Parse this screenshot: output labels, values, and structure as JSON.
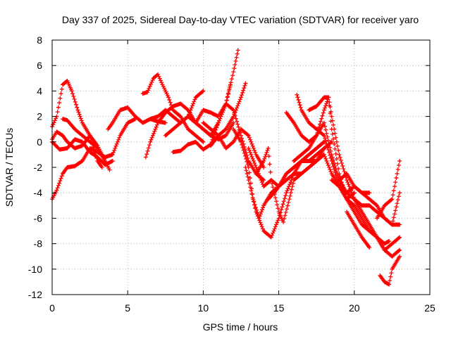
{
  "chart_data": {
    "type": "scatter",
    "title": "Day 337 of 2025, Sidereal Day-to-day VTEC variation (SDTVAR) for receiver yaro",
    "xlabel": "GPS time / hours",
    "ylabel": "SDTVAR / TECUs",
    "xlim": [
      0,
      25
    ],
    "ylim": [
      -12,
      8
    ],
    "x_ticks": [
      0,
      5,
      10,
      15,
      20,
      25
    ],
    "y_ticks": [
      -12,
      -10,
      -8,
      -6,
      -4,
      -2,
      0,
      2,
      4,
      6,
      8
    ],
    "grid": true,
    "marker": "+",
    "color": "#ff0000",
    "series": [
      {
        "x": [
          0.0,
          0.5,
          1.0,
          1.5,
          2.0,
          2.5,
          3.0,
          3.5,
          4.0
        ],
        "y": [
          0.0,
          -0.6,
          -0.5,
          0.2,
          0.0,
          -0.8,
          -1.2,
          -1.8,
          -1.5
        ]
      },
      {
        "x": [
          0.0,
          0.3,
          0.7,
          1.0,
          1.3,
          1.7,
          2.0,
          2.5,
          3.0,
          3.3
        ],
        "y": [
          1.2,
          2.0,
          4.5,
          4.8,
          4.0,
          2.5,
          1.5,
          0.5,
          -0.3,
          -1.0
        ]
      },
      {
        "x": [
          0.0,
          0.3,
          0.7,
          1.0,
          1.5,
          2.0,
          2.5,
          3.0,
          3.5,
          4.0,
          4.5,
          5.0,
          5.5
        ],
        "y": [
          -4.5,
          -3.8,
          -2.5,
          -2.0,
          -1.9,
          -1.5,
          -0.5,
          -0.8,
          -1.2,
          -1.0,
          0.5,
          1.5,
          1.8
        ]
      },
      {
        "x": [
          0.0,
          0.3,
          0.7,
          1.0,
          1.5,
          2.0,
          2.5,
          3.0,
          3.3
        ],
        "y": [
          0.2,
          0.8,
          0.5,
          0.0,
          -0.5,
          -0.3,
          0.5,
          -1.5,
          -2.0
        ]
      },
      {
        "x": [
          0.7,
          1.0,
          1.5,
          2.0,
          2.5,
          3.0,
          3.5,
          3.8
        ],
        "y": [
          1.8,
          1.7,
          1.0,
          0.5,
          0.0,
          -0.5,
          -1.5,
          -2.2
        ]
      },
      {
        "x": [
          3.7,
          4.0,
          4.5,
          5.0,
          5.5,
          6.0,
          6.5,
          7.0,
          7.5
        ],
        "y": [
          1.0,
          1.5,
          2.5,
          2.7,
          2.0,
          1.5,
          1.8,
          1.6,
          1.5
        ]
      },
      {
        "x": [
          6.0,
          6.3,
          6.7,
          7.0,
          7.3,
          7.7,
          8.0,
          8.5,
          9.0,
          9.5,
          10.0
        ],
        "y": [
          3.8,
          3.9,
          5.0,
          5.3,
          4.5,
          3.5,
          2.5,
          2.0,
          1.0,
          0.5,
          0.0
        ]
      },
      {
        "x": [
          6.2,
          6.5,
          7.0,
          7.5,
          8.0,
          8.5,
          9.0,
          9.5,
          10.0,
          10.5,
          11.0,
          11.5,
          12.0
        ],
        "y": [
          -1.2,
          0.0,
          1.5,
          2.3,
          2.8,
          3.0,
          2.5,
          1.5,
          1.0,
          0.5,
          0.2,
          0.5,
          1.5
        ]
      },
      {
        "x": [
          6.5,
          7.0,
          7.5,
          8.0,
          8.5,
          9.0,
          9.5,
          10.0
        ],
        "y": [
          1.8,
          2.0,
          2.5,
          2.0,
          1.5,
          2.0,
          3.5,
          4.0
        ]
      },
      {
        "x": [
          7.5,
          8.0,
          8.5,
          9.0,
          9.5,
          10.0,
          10.5,
          11.0,
          11.5,
          12.0,
          12.3
        ],
        "y": [
          0.5,
          1.0,
          1.5,
          2.0,
          1.5,
          1.0,
          0.5,
          1.5,
          3.0,
          5.5,
          7.2
        ]
      },
      {
        "x": [
          8.0,
          8.5,
          9.0,
          9.5,
          10.0,
          10.5,
          11.0,
          11.5,
          11.8
        ],
        "y": [
          -0.8,
          -0.7,
          -0.2,
          0.0,
          -0.6,
          -0.2,
          1.5,
          3.0,
          4.5
        ]
      },
      {
        "x": [
          9.0,
          9.5,
          10.0,
          10.5,
          11.0,
          11.5,
          12.0,
          12.5,
          13.0,
          13.5,
          14.0
        ],
        "y": [
          2.0,
          1.5,
          2.5,
          2.3,
          2.0,
          3.0,
          2.5,
          0.5,
          -1.5,
          -2.5,
          -3.0
        ]
      },
      {
        "x": [
          10.0,
          10.5,
          11.0,
          11.5,
          12.0,
          12.5,
          13.0,
          13.5,
          14.0
        ],
        "y": [
          1.5,
          1.0,
          0.5,
          -0.5,
          0.0,
          1.0,
          0.5,
          -1.0,
          -2.0
        ]
      },
      {
        "x": [
          10.5,
          11.0,
          11.5,
          12.0,
          12.5,
          12.8
        ],
        "y": [
          -0.3,
          0.5,
          1.0,
          2.0,
          3.5,
          4.6
        ]
      },
      {
        "x": [
          12.0,
          12.5,
          13.0,
          13.3,
          13.7,
          14.0,
          14.5,
          15.0,
          15.5,
          16.0,
          16.5,
          17.0,
          17.5
        ],
        "y": [
          1.0,
          0.0,
          -2.0,
          -4.5,
          -6.0,
          -5.0,
          -4.0,
          -3.5,
          -3.0,
          -2.5,
          -2.5,
          -2.0,
          -1.5
        ]
      },
      {
        "x": [
          12.8,
          13.0,
          13.5,
          14.0,
          14.5,
          15.0,
          15.5,
          16.0,
          16.5,
          17.0,
          17.5,
          18.0
        ],
        "y": [
          -2.0,
          -3.0,
          -5.5,
          -7.0,
          -7.5,
          -6.0,
          -4.0,
          -2.5,
          -1.5,
          -1.0,
          -0.5,
          0.0
        ]
      },
      {
        "x": [
          13.0,
          13.5,
          14.0,
          14.5,
          15.0,
          15.3,
          15.7,
          16.0,
          16.5,
          17.0,
          17.5,
          18.0
        ],
        "y": [
          -0.5,
          -2.0,
          -3.5,
          -3.0,
          -5.5,
          -6.3,
          -4.5,
          -3.0,
          -2.5,
          -2.0,
          -1.5,
          -0.5
        ]
      },
      {
        "x": [
          13.5,
          14.0,
          14.3,
          14.5,
          15.0,
          15.5,
          16.0,
          16.5,
          17.0,
          17.5,
          18.0
        ],
        "y": [
          -2.5,
          -1.5,
          -0.5,
          -3.0,
          -3.5,
          -2.5,
          -2.0,
          -1.5,
          -1.0,
          -0.5,
          0.0
        ]
      },
      {
        "x": [
          14.3,
          14.7,
          15.0,
          15.5,
          16.0,
          16.5,
          17.0,
          17.5,
          18.0,
          18.5
        ],
        "y": [
          -4.5,
          -4.0,
          -3.5,
          -2.5,
          -2.0,
          -1.5,
          -1.5,
          -1.0,
          -0.5,
          0.0
        ]
      },
      {
        "x": [
          15.5,
          16.0,
          16.5,
          17.0,
          17.5,
          18.0,
          18.3,
          18.5,
          19.0,
          19.5,
          20.0
        ],
        "y": [
          2.3,
          1.5,
          0.5,
          0.0,
          0.5,
          2.5,
          3.5,
          1.0,
          -2.5,
          -4.5,
          -4.0
        ]
      },
      {
        "x": [
          16.0,
          16.5,
          17.0,
          17.5,
          18.0,
          18.5,
          19.0,
          19.5,
          20.0,
          20.5,
          21.0,
          21.5,
          22.0,
          22.5,
          23.0
        ],
        "y": [
          -1.5,
          -1.0,
          -0.5,
          0.5,
          1.5,
          -1.0,
          -3.0,
          -4.0,
          -3.5,
          -4.0,
          -4.5,
          -5.0,
          -6.0,
          -6.5,
          -6.5
        ]
      },
      {
        "x": [
          16.2,
          16.5,
          17.0,
          17.5,
          18.0,
          18.5,
          19.0,
          19.5,
          20.0,
          20.5,
          21.0,
          21.5,
          22.0,
          22.5,
          23.0
        ],
        "y": [
          3.7,
          2.5,
          1.5,
          1.0,
          0.5,
          -1.5,
          -3.5,
          -4.5,
          -5.5,
          -6.5,
          -7.0,
          -7.5,
          -8.5,
          -8.0,
          -7.5
        ]
      },
      {
        "x": [
          17.0,
          17.5,
          18.0,
          18.3,
          18.5,
          19.0,
          19.5,
          20.0,
          20.5,
          21.0,
          21.5,
          22.0,
          22.5,
          23.0
        ],
        "y": [
          2.5,
          2.8,
          3.5,
          3.5,
          2.0,
          -1.0,
          -3.0,
          -4.5,
          -5.5,
          -6.5,
          -7.5,
          -8.5,
          -9.0,
          -8.5
        ]
      },
      {
        "x": [
          17.0,
          17.5,
          18.0,
          18.5,
          19.0,
          19.5,
          20.0,
          20.5,
          21.0,
          21.5,
          22.0,
          22.3
        ],
        "y": [
          -1.5,
          -1.5,
          -1.0,
          -2.5,
          -3.5,
          -4.5,
          -5.0,
          -6.0,
          -7.0,
          -7.5,
          -8.0,
          -7.8
        ]
      },
      {
        "x": [
          18.5,
          19.0,
          19.5,
          20.0,
          20.5,
          21.0,
          21.5,
          22.0,
          22.5,
          23.0
        ],
        "y": [
          -3.0,
          -3.5,
          -4.0,
          -4.5,
          -5.0,
          -5.0,
          -5.5,
          -6.0,
          -6.5,
          -4.0
        ]
      },
      {
        "x": [
          19.0,
          19.5,
          20.0,
          20.5,
          21.0
        ],
        "y": [
          -3.0,
          -2.5,
          -3.5,
          -4.0,
          -4.0
        ]
      },
      {
        "x": [
          21.5,
          22.0,
          22.5,
          23.0
        ],
        "y": [
          -6.0,
          -5.0,
          -4.5,
          -1.5
        ]
      },
      {
        "x": [
          21.7,
          22.0,
          22.3,
          22.5,
          23.0
        ],
        "y": [
          -10.5,
          -11.0,
          -11.2,
          -10.0,
          -9.0
        ]
      },
      {
        "x": [
          19.5,
          20.0,
          20.5,
          21.0
        ],
        "y": [
          -5.5,
          -6.5,
          -7.5,
          -8.3
        ]
      }
    ]
  }
}
